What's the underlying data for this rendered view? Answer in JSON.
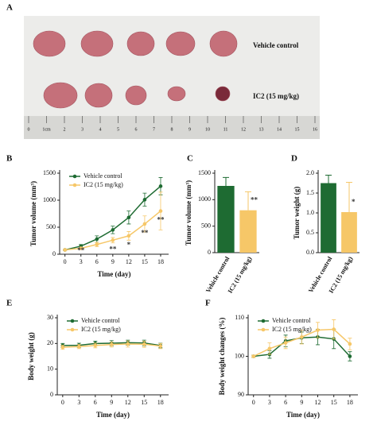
{
  "photo": {
    "panel": "A",
    "rows": [
      "Vehicle control",
      "IC2 (15 mg/kg)"
    ],
    "ruler": [
      "0",
      "1cm",
      "2",
      "3",
      "4",
      "5",
      "6",
      "7",
      "8",
      "9",
      "10",
      "11",
      "12",
      "13",
      "14",
      "15",
      "16"
    ]
  },
  "chart_data": [
    {
      "type": "line",
      "panel": "B",
      "xlabel": "Time (day)",
      "ylabel": "Tumor volume (mm³)",
      "x": [
        0,
        3,
        6,
        9,
        12,
        15,
        18
      ],
      "xlim": [
        -1,
        19.5
      ],
      "xticks": [
        0,
        3,
        6,
        9,
        12,
        15,
        18
      ],
      "ylim": [
        0,
        1500
      ],
      "yticks": [
        0,
        500,
        1000,
        1500
      ],
      "legend": "upper left",
      "series": [
        {
          "name": "Vehicle control",
          "color": "#1e6b32",
          "values": [
            80,
            150,
            280,
            450,
            680,
            1010,
            1260
          ],
          "errors": [
            10,
            30,
            60,
            70,
            120,
            120,
            160
          ]
        },
        {
          "name": "IC2 (15 mg/kg)",
          "color": "#f6c768",
          "values": [
            80,
            110,
            180,
            260,
            340,
            560,
            800
          ],
          "errors": [
            10,
            20,
            40,
            50,
            80,
            150,
            350
          ]
        }
      ],
      "annotations": [
        {
          "text": "**",
          "x": 3
        },
        {
          "text": "**",
          "x": 9
        },
        {
          "text": "*",
          "x": 12
        },
        {
          "text": "**",
          "x": 15
        },
        {
          "text": "**",
          "x": 18
        }
      ]
    },
    {
      "type": "bar",
      "panel": "C",
      "ylabel": "Tumor volume (mm³)",
      "categories": [
        "Vehicle control",
        "IC2 (15 mg/kg)"
      ],
      "values": [
        1260,
        800
      ],
      "errors": [
        160,
        350
      ],
      "colors": [
        "#1e6b32",
        "#f6c768"
      ],
      "ylim": [
        0,
        1500
      ],
      "yticks": [
        0,
        500,
        1000,
        1500
      ],
      "annotations": [
        {
          "text": "**",
          "x": "IC2 (15 mg/kg)"
        }
      ]
    },
    {
      "type": "bar",
      "panel": "D",
      "ylabel": "Tumor weight (g)",
      "categories": [
        "Vehicle control",
        "IC2 (15 mg/kg)"
      ],
      "values": [
        1.75,
        1.02
      ],
      "errors": [
        0.2,
        0.75
      ],
      "colors": [
        "#1e6b32",
        "#f6c768"
      ],
      "ylim": [
        0,
        2
      ],
      "yticks": [
        {
          "value": 0,
          "label": "0.0"
        },
        {
          "value": 0.5,
          "label": "0.5"
        },
        {
          "value": 1,
          "label": "1.0"
        },
        {
          "value": 1.5,
          "label": "1.5"
        },
        {
          "value": 2,
          "label": "2.0"
        }
      ],
      "annotations": [
        {
          "text": "*",
          "x": "IC2 (15 mg/kg)"
        }
      ]
    },
    {
      "type": "line",
      "panel": "E",
      "xlabel": "Time (day)",
      "ylabel": "Body weight (g)",
      "x": [
        0,
        3,
        6,
        9,
        12,
        15,
        18
      ],
      "xlim": [
        -1,
        19.5
      ],
      "xticks": [
        0,
        3,
        6,
        9,
        12,
        15,
        18
      ],
      "ylim": [
        0,
        30
      ],
      "yticks": [
        0,
        10,
        20,
        30
      ],
      "legend": "upper left",
      "series": [
        {
          "name": "Vehicle control",
          "color": "#1e6b32",
          "values": [
            19.2,
            19.3,
            20,
            20.1,
            20.3,
            20.2,
            19.2
          ],
          "errors": [
            0.8,
            0.8,
            0.9,
            1,
            1,
            1.1,
            0.9
          ]
        },
        {
          "name": "IC2 (15 mg/kg)",
          "color": "#f6c768",
          "values": [
            18.5,
            18.8,
            19.2,
            19.6,
            19.8,
            19.7,
            19
          ],
          "errors": [
            0.8,
            0.8,
            0.9,
            1,
            1.2,
            1.2,
            1
          ]
        }
      ]
    },
    {
      "type": "line",
      "panel": "F",
      "xlabel": "Time (day)",
      "ylabel": "Body weight changes (%)",
      "x": [
        0,
        3,
        6,
        9,
        12,
        15,
        18
      ],
      "xlim": [
        -1,
        19.5
      ],
      "xticks": [
        0,
        3,
        6,
        9,
        12,
        15,
        18
      ],
      "ylim": [
        90,
        110
      ],
      "yticks": [
        90,
        100,
        110
      ],
      "legend": "upper left",
      "series": [
        {
          "name": "Vehicle control",
          "color": "#1e6b32",
          "values": [
            100,
            100.5,
            104,
            104.8,
            105,
            104.5,
            100
          ],
          "errors": [
            0.3,
            1,
            1.5,
            1.5,
            2,
            2.5,
            1.2
          ]
        },
        {
          "name": "IC2 (15 mg/kg)",
          "color": "#f6c768",
          "values": [
            100,
            102,
            103.5,
            105,
            106.8,
            107,
            103.2
          ],
          "errors": [
            0.3,
            1.5,
            1.5,
            1.8,
            2,
            2.5,
            1.5
          ]
        }
      ]
    }
  ]
}
